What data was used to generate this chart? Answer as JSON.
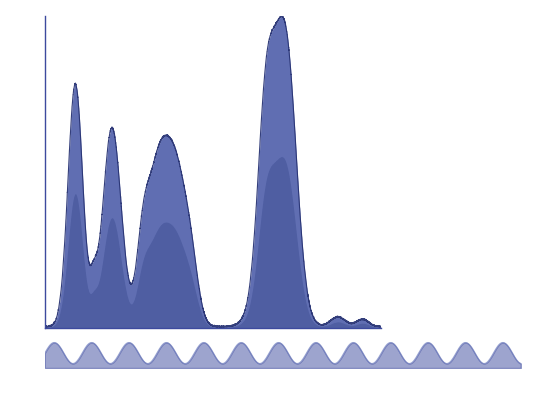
{
  "fill_color": "#4f5faa",
  "fill_color_dark": "#3a4a90",
  "edge_color": "#2a3575",
  "bg_color": "#ffffff",
  "xlim": [
    0,
    5.5
  ],
  "ylim": [
    0,
    1.0
  ],
  "figsize": [
    5.6,
    4.0
  ],
  "dpi": 100,
  "spine_color": "#3d4a9e",
  "bottom_bar_color": "#4a58b0",
  "label_bar_color": "#3d4eaa",
  "label_bar2_color": "#4a58b0"
}
